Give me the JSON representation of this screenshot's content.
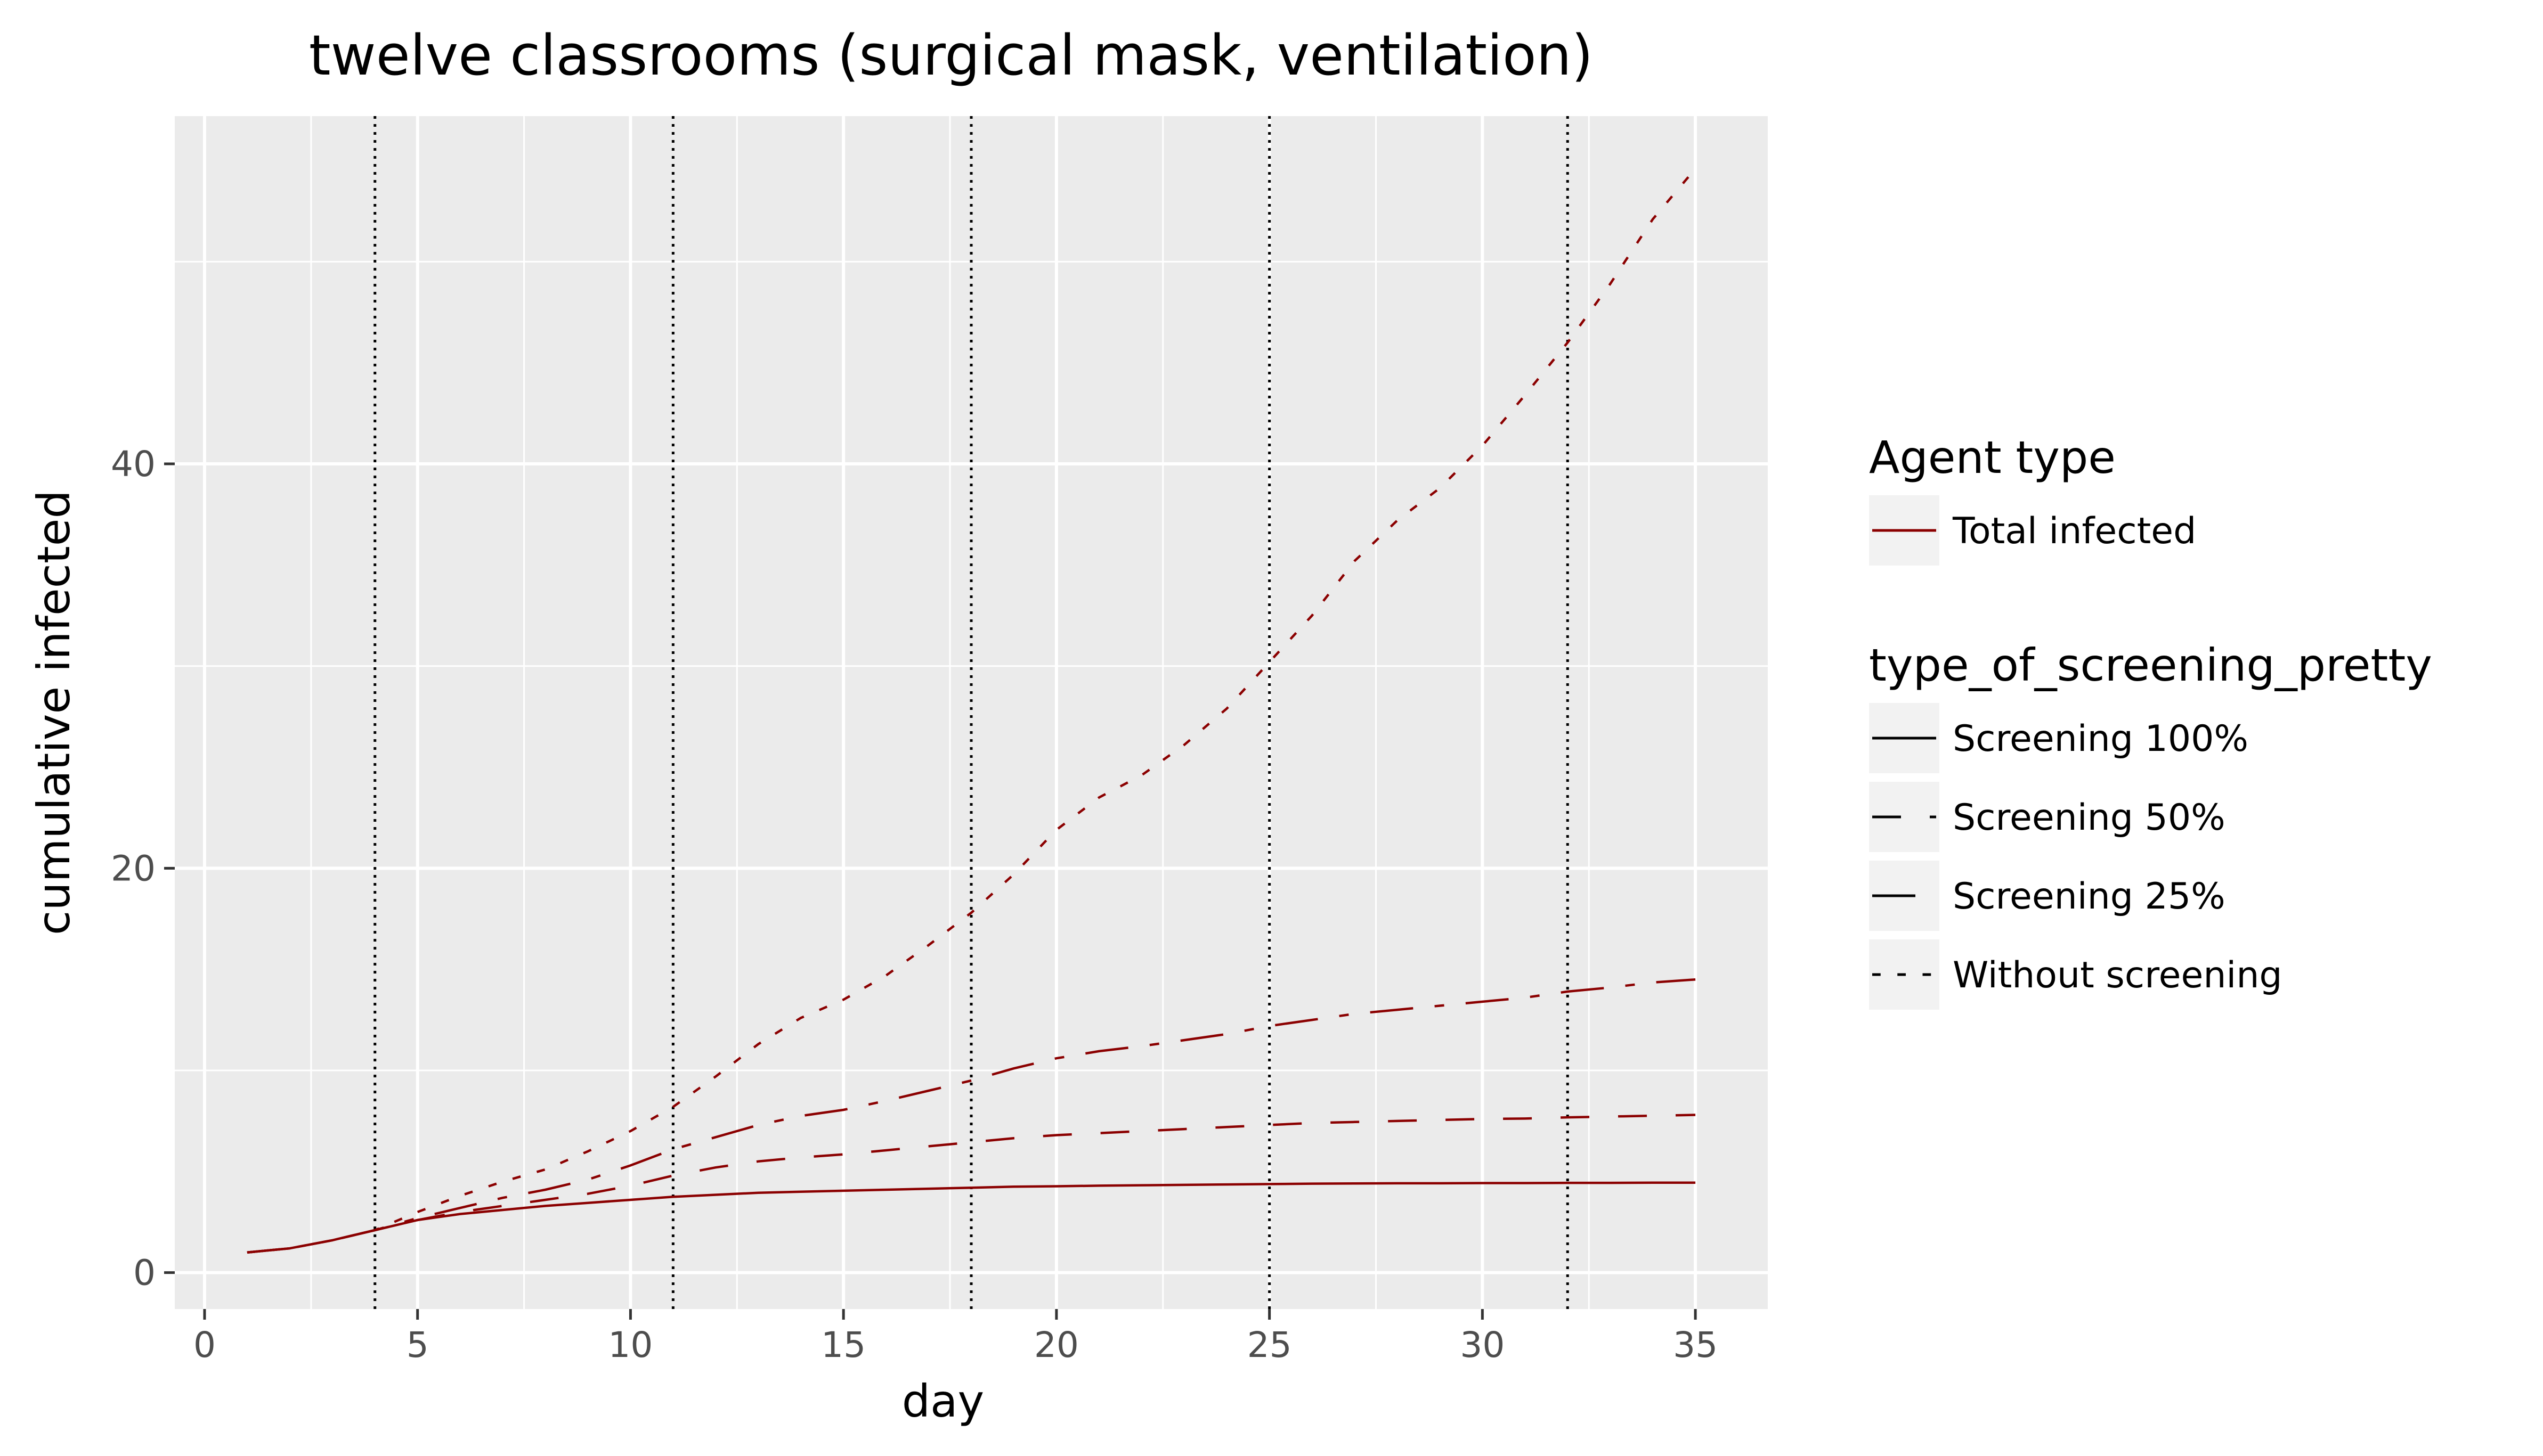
{
  "chart_data": {
    "type": "line",
    "title": "twelve classrooms (surgical mask, ventilation)",
    "xlabel": "day",
    "ylabel": "cumulative infected",
    "xlim": [
      -0.7,
      36.7
    ],
    "ylim": [
      -1.8,
      57.2
    ],
    "x_ticks": [
      0,
      5,
      10,
      15,
      20,
      25,
      30,
      35
    ],
    "x_tick_labels": [
      "0",
      "5",
      "10",
      "15",
      "20",
      "25",
      "30",
      "35"
    ],
    "y_ticks": [
      0,
      20,
      40
    ],
    "y_tick_labels": [
      "0",
      "20",
      "40"
    ],
    "grid": true,
    "panel_background": "#ebebeb",
    "line_color": "#8b0000",
    "vlines": [
      4,
      11,
      18,
      25,
      32
    ],
    "vline_style": "dotted",
    "legend_position": "right",
    "legends": [
      {
        "title": "Agent type",
        "items": [
          {
            "label": "Total infected",
            "dash": "solid",
            "color": "#8b0000"
          }
        ]
      },
      {
        "title": "type_of_screening_pretty",
        "items": [
          {
            "label": "Screening 100%",
            "dash": "solid",
            "color": "#000000"
          },
          {
            "label": "Screening 50%",
            "dash": "dashed",
            "color": "#000000"
          },
          {
            "label": "Screening 25%",
            "dash": "dashdot",
            "color": "#000000"
          },
          {
            "label": "Without screening",
            "dash": "dotted",
            "color": "#000000"
          }
        ]
      }
    ],
    "x": [
      1,
      2,
      3,
      4,
      5,
      6,
      7,
      8,
      9,
      10,
      11,
      12,
      13,
      14,
      15,
      16,
      17,
      18,
      19,
      20,
      21,
      22,
      23,
      24,
      25,
      26,
      27,
      28,
      29,
      30,
      31,
      32,
      33,
      34,
      35
    ],
    "series": [
      {
        "name": "Screening 100%",
        "dash": "solid",
        "values": [
          1.0,
          1.2,
          1.6,
          2.1,
          2.6,
          2.9,
          3.1,
          3.3,
          3.45,
          3.6,
          3.75,
          3.85,
          3.95,
          4.0,
          4.05,
          4.1,
          4.15,
          4.2,
          4.25,
          4.27,
          4.3,
          4.32,
          4.34,
          4.36,
          4.38,
          4.4,
          4.41,
          4.42,
          4.42,
          4.43,
          4.43,
          4.44,
          4.44,
          4.45,
          4.45
        ]
      },
      {
        "name": "Screening 50%",
        "dash": "dashed",
        "values": [
          1.0,
          1.2,
          1.6,
          2.1,
          2.6,
          3.0,
          3.3,
          3.6,
          3.9,
          4.3,
          4.8,
          5.2,
          5.5,
          5.7,
          5.85,
          6.05,
          6.25,
          6.45,
          6.65,
          6.8,
          6.9,
          7.0,
          7.1,
          7.2,
          7.3,
          7.4,
          7.45,
          7.5,
          7.55,
          7.6,
          7.62,
          7.68,
          7.72,
          7.76,
          7.8
        ]
      },
      {
        "name": "Screening 25%",
        "dash": "dashdot",
        "values": [
          1.0,
          1.2,
          1.6,
          2.1,
          2.7,
          3.2,
          3.7,
          4.1,
          4.6,
          5.3,
          6.1,
          6.7,
          7.3,
          7.75,
          8.05,
          8.5,
          9.0,
          9.5,
          10.1,
          10.6,
          10.95,
          11.2,
          11.5,
          11.8,
          12.2,
          12.5,
          12.8,
          13.0,
          13.2,
          13.4,
          13.6,
          13.9,
          14.1,
          14.35,
          14.5
        ]
      },
      {
        "name": "Without screening",
        "dash": "dotted",
        "values": [
          1.0,
          1.2,
          1.6,
          2.1,
          3.0,
          3.8,
          4.5,
          5.1,
          6.0,
          7.0,
          8.2,
          9.7,
          11.3,
          12.6,
          13.5,
          14.7,
          16.2,
          17.8,
          19.7,
          21.9,
          23.5,
          24.6,
          26.1,
          27.9,
          30.2,
          32.5,
          35.2,
          37.2,
          38.8,
          40.9,
          43.4,
          46.0,
          48.9,
          52.1,
          54.6
        ]
      }
    ]
  }
}
